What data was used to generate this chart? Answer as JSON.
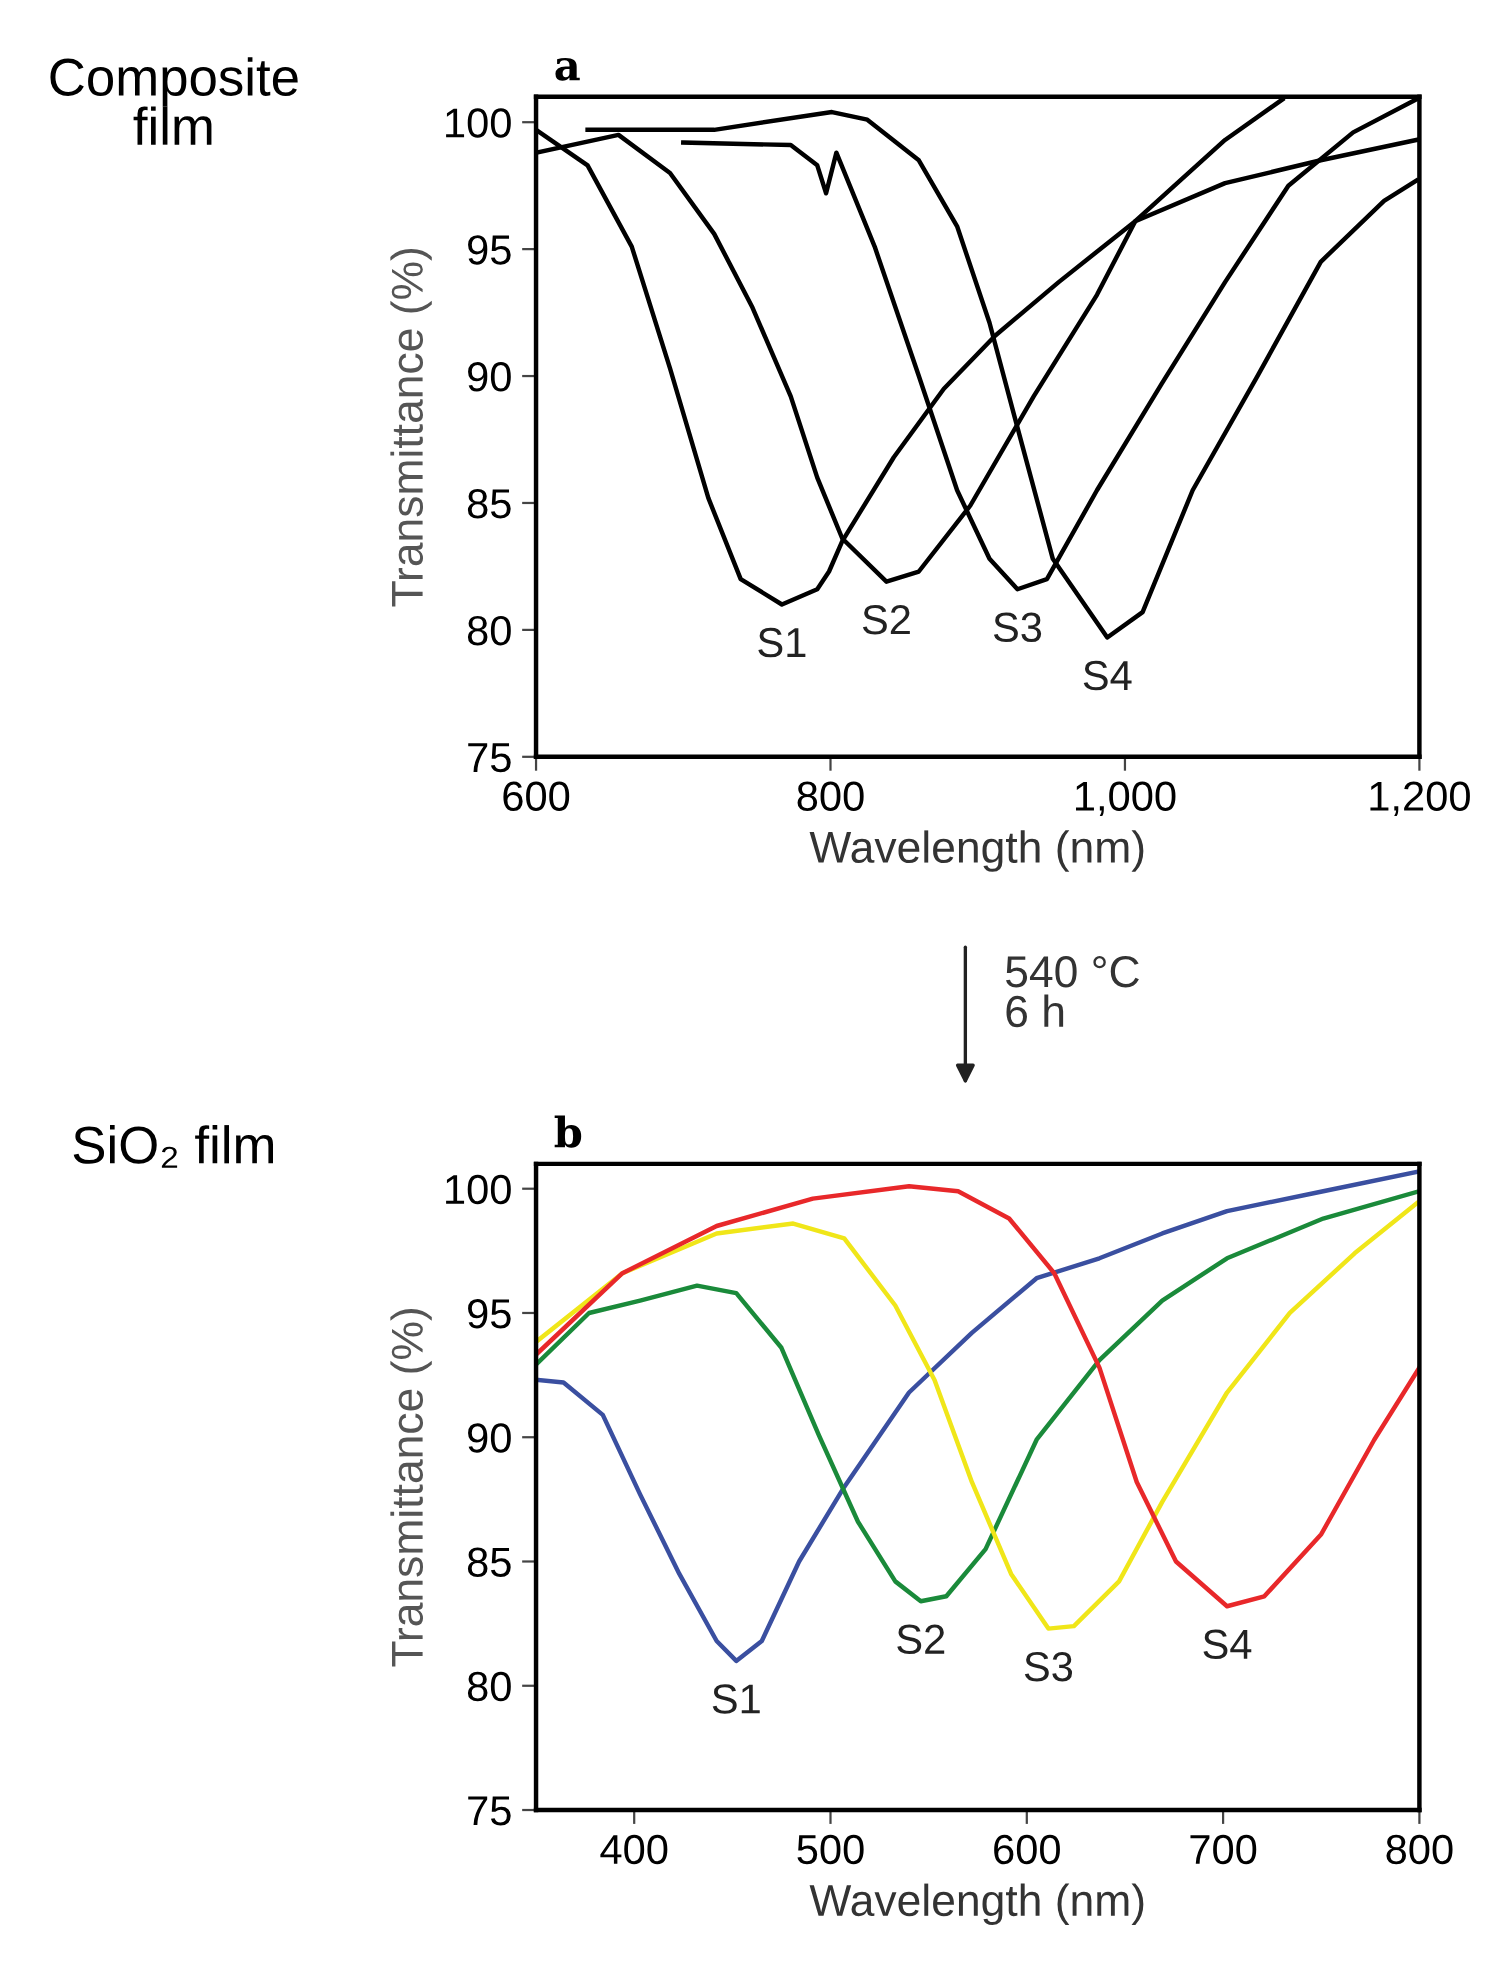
{
  "chart_data": [
    {
      "type": "line",
      "title": "a",
      "xlabel": "Wavelength (nm)",
      "ylabel": "Transmittance (%)",
      "annotations": [
        "Composite\nfilm",
        "540 °C\n6 h"
      ],
      "xlim": [
        600,
        1200
      ],
      "xticks": [
        600,
        800,
        {
          "value": 1000,
          "label": "1,000"
        },
        {
          "value": 1200,
          "label": "1,200"
        }
      ],
      "ylim": [
        75,
        101
      ],
      "yticks": [
        75,
        80,
        85,
        90,
        95,
        100
      ],
      "grid": false,
      "series": [
        {
          "name": "S1",
          "color": "#000000",
          "x": [
            600,
            635,
            665,
            691,
            717,
            739,
            767,
            791,
            799,
            808,
            843,
            877,
            912,
            955,
            1007,
            1068,
            1133,
            1198
          ],
          "values": [
            99.7,
            98.3,
            95.1,
            90.3,
            85.2,
            82.0,
            81.0,
            81.6,
            82.3,
            83.5,
            86.8,
            89.5,
            91.6,
            93.7,
            96.1,
            97.6,
            98.5,
            99.3
          ]
        },
        {
          "name": "S2",
          "color": "#000000",
          "x": [
            600,
            656,
            691,
            721,
            747,
            773,
            791,
            808,
            838,
            860,
            895,
            938,
            981,
            1007,
            1068,
            1107
          ],
          "values": [
            98.8,
            99.5,
            98.0,
            95.6,
            92.7,
            89.2,
            86.0,
            83.6,
            81.9,
            82.3,
            84.9,
            89.2,
            93.2,
            96.1,
            99.3,
            100.9
          ]
        },
        {
          "name": "S3",
          "color": "#000000",
          "x": [
            700,
            773,
            791,
            797,
            804,
            830,
            860,
            886,
            908,
            927,
            947,
            981,
            1025,
            1068,
            1111,
            1155,
            1198
          ],
          "values": [
            99.2,
            99.1,
            98.3,
            97.2,
            98.8,
            95.1,
            90.0,
            85.5,
            82.8,
            81.6,
            82.0,
            85.5,
            89.7,
            93.7,
            97.5,
            99.6,
            100.9
          ]
        },
        {
          "name": "S4",
          "color": "#000000",
          "x": [
            635,
            721,
            801,
            825,
            860,
            886,
            908,
            925,
            951,
            988,
            1012,
            1046,
            1090,
            1133,
            1176,
            1198
          ],
          "values": [
            99.7,
            99.7,
            100.4,
            100.1,
            98.5,
            95.9,
            92.1,
            88.4,
            82.8,
            79.7,
            80.7,
            85.5,
            90.0,
            94.5,
            96.9,
            97.7
          ]
        }
      ]
    },
    {
      "type": "line",
      "title": "b",
      "xlabel": "Wavelength (nm)",
      "ylabel": "Transmittance (%)",
      "annotations": [
        "SiO₂ film"
      ],
      "xlim": [
        350,
        800
      ],
      "xticks": [
        400,
        500,
        600,
        700,
        800
      ],
      "ylim": [
        75,
        101
      ],
      "yticks": [
        75,
        80,
        85,
        90,
        95,
        100
      ],
      "grid": false,
      "series": [
        {
          "name": "S1",
          "color": "#3a4fa0",
          "x": [
            351,
            364,
            384,
            403,
            423,
            442,
            452,
            465,
            484,
            507,
            540,
            572,
            605,
            637,
            669,
            702,
            751,
            800
          ],
          "values": [
            92.3,
            92.2,
            90.9,
            87.7,
            84.5,
            81.8,
            81.0,
            81.8,
            85.0,
            88.0,
            91.8,
            94.2,
            96.4,
            97.2,
            98.2,
            99.1,
            99.9,
            100.7
          ]
        },
        {
          "name": "S2",
          "color": "#1a8a3a",
          "x": [
            351,
            377,
            403,
            432,
            452,
            475,
            494,
            514,
            533,
            546,
            559,
            579,
            605,
            637,
            669,
            702,
            751,
            800
          ],
          "values": [
            93.0,
            95.0,
            95.5,
            96.1,
            95.8,
            93.6,
            90.1,
            86.6,
            84.2,
            83.4,
            83.6,
            85.5,
            89.9,
            93.1,
            95.5,
            97.2,
            98.8,
            99.9
          ]
        },
        {
          "name": "S3",
          "color": "#f0e619",
          "x": [
            351,
            394,
            442,
            481,
            507,
            533,
            553,
            572,
            592,
            611,
            624,
            647,
            669,
            702,
            734,
            767,
            800
          ],
          "values": [
            93.9,
            96.6,
            98.2,
            98.6,
            98.0,
            95.3,
            92.3,
            88.2,
            84.5,
            82.3,
            82.4,
            84.2,
            87.4,
            91.8,
            95.0,
            97.4,
            99.5
          ]
        },
        {
          "name": "S4",
          "color": "#e8282a",
          "x": [
            351,
            394,
            442,
            491,
            540,
            565,
            591,
            614,
            637,
            656,
            676,
            702,
            721,
            750,
            777,
            800
          ],
          "values": [
            93.4,
            96.6,
            98.5,
            99.6,
            100.1,
            99.9,
            98.8,
            96.6,
            92.8,
            88.2,
            85.0,
            83.2,
            83.6,
            86.1,
            89.9,
            92.8
          ]
        }
      ]
    }
  ]
}
